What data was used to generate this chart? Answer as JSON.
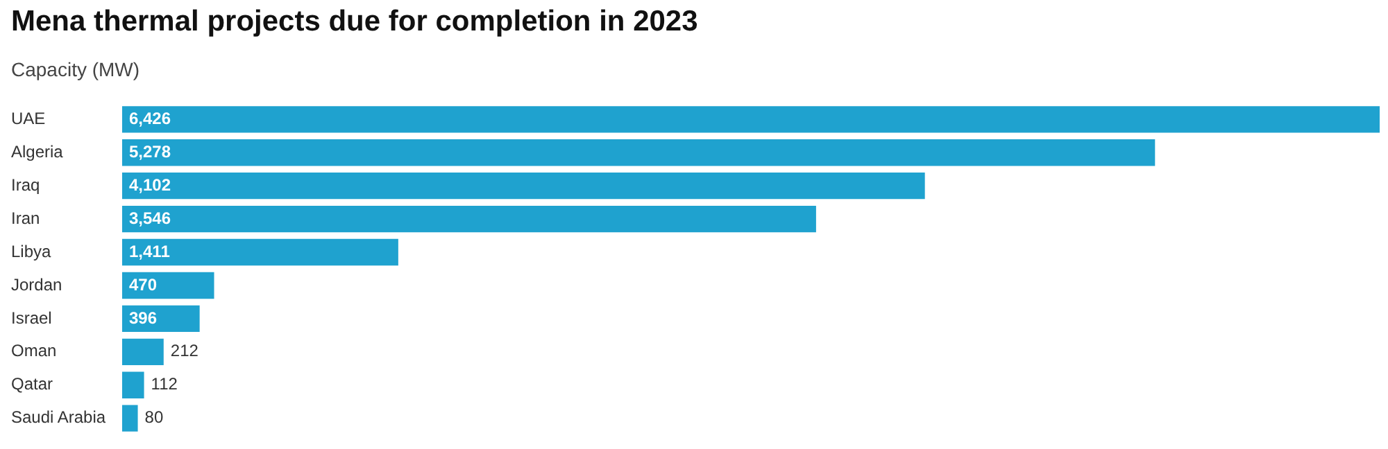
{
  "chart_data": {
    "type": "bar",
    "orientation": "horizontal",
    "title": "Mena thermal projects due for completion in 2023",
    "subtitle": "Capacity (MW)",
    "categories": [
      "UAE",
      "Algeria",
      "Iraq",
      "Iran",
      "Libya",
      "Jordan",
      "Israel",
      "Oman",
      "Qatar",
      "Saudi Arabia"
    ],
    "values": [
      6426,
      5278,
      4102,
      3546,
      1411,
      470,
      396,
      212,
      112,
      80
    ],
    "value_labels": [
      "6,426",
      "5,278",
      "4,102",
      "3,546",
      "1,411",
      "470",
      "396",
      "212",
      "112",
      "80"
    ],
    "color": "#1fa2cf",
    "grid": false,
    "legend": false
  }
}
